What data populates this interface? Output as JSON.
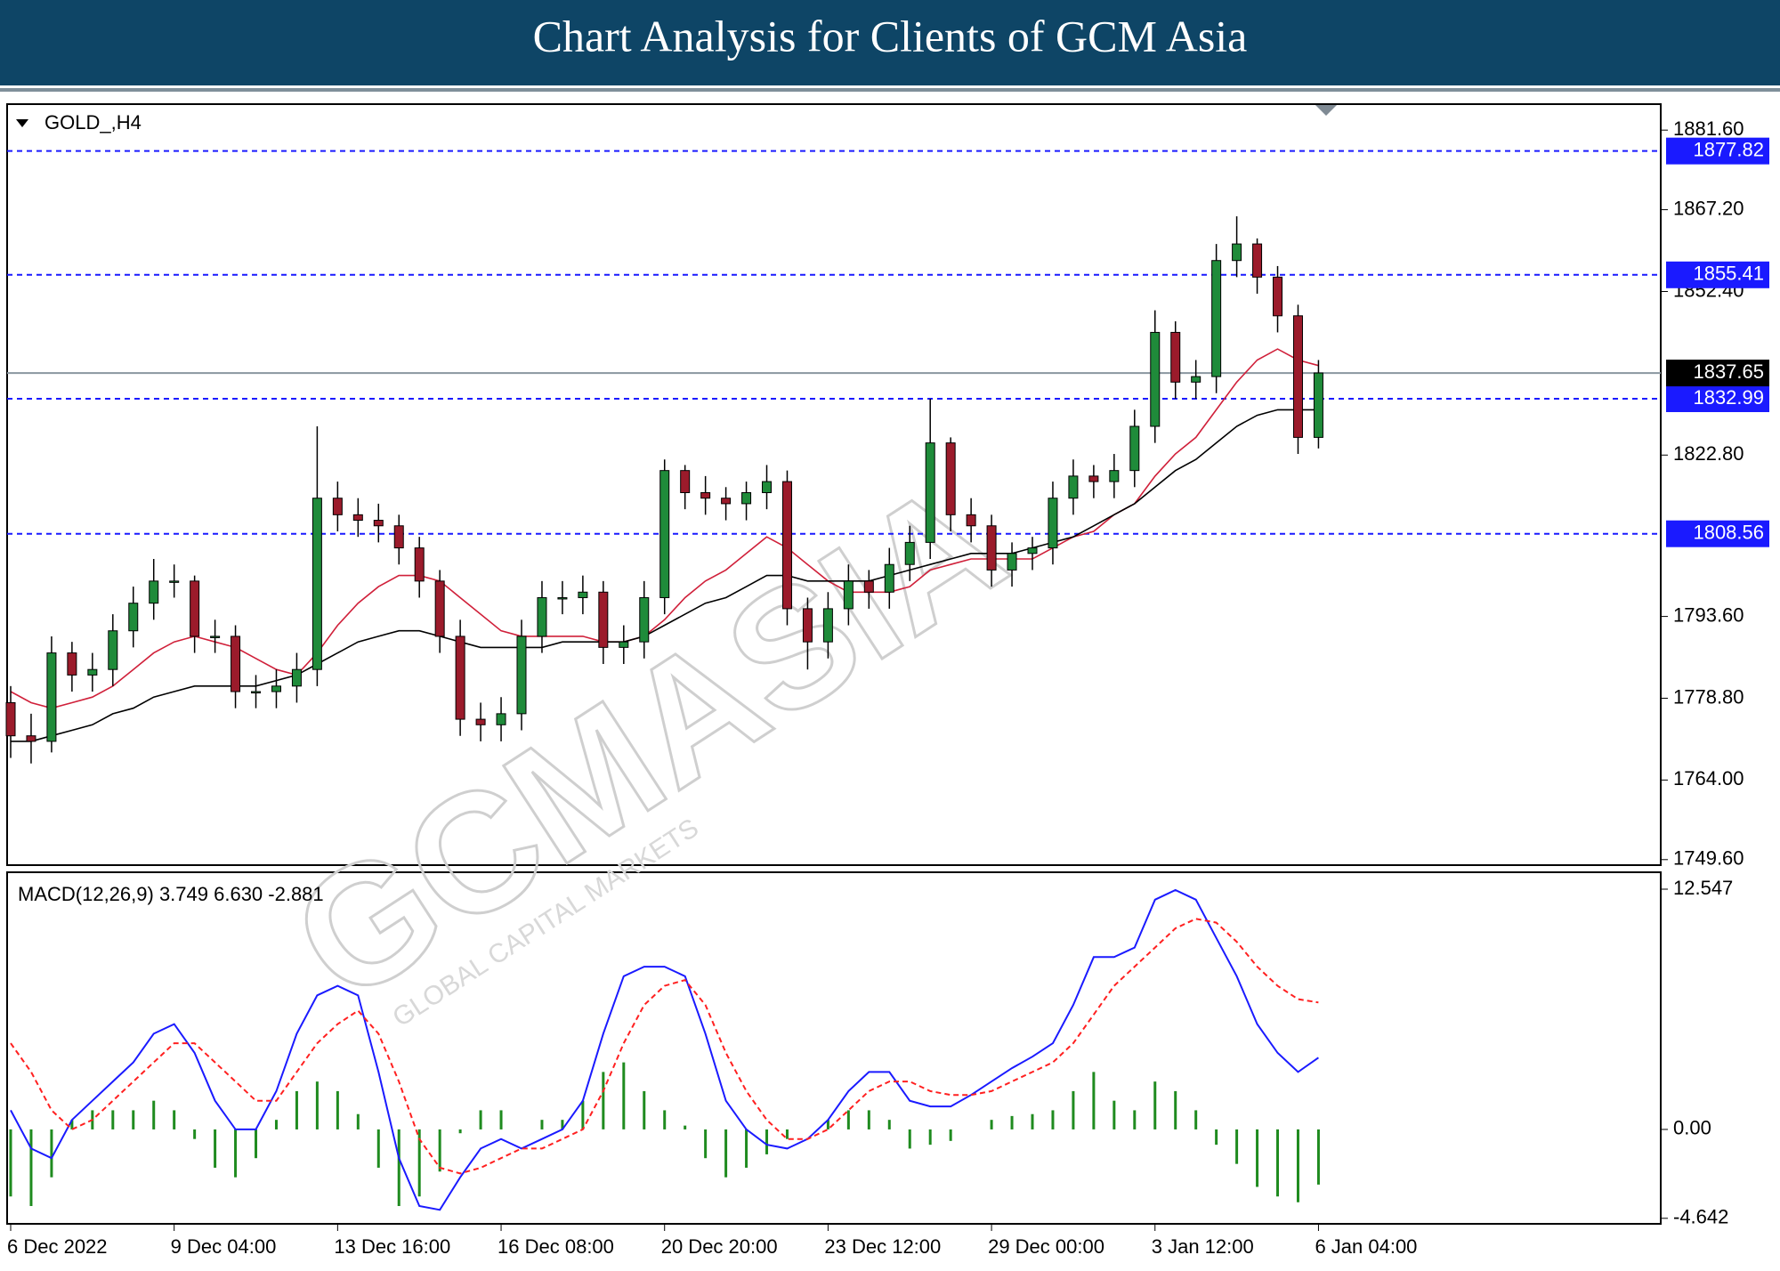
{
  "header": {
    "title": "Chart Analysis for Clients of GCM Asia"
  },
  "watermark": {
    "brand": "GCMASIA",
    "tagline": "GLOBAL CAPITAL MARKETS"
  },
  "chart_data": [
    {
      "type": "candlestick",
      "title": "GOLD_,H4",
      "categories": [
        "6 Dec 2022",
        null,
        null,
        null,
        null,
        null,
        null,
        null,
        "9 Dec 04:00",
        null,
        null,
        null,
        null,
        null,
        null,
        null,
        "13 Dec 16:00",
        null,
        null,
        null,
        null,
        null,
        null,
        null,
        "16 Dec 08:00",
        null,
        null,
        null,
        null,
        null,
        null,
        null,
        "20 Dec 20:00",
        null,
        null,
        null,
        null,
        null,
        null,
        null,
        "23 Dec 12:00",
        null,
        null,
        null,
        null,
        null,
        null,
        null,
        "29 Dec 00:00",
        null,
        null,
        null,
        null,
        null,
        null,
        null,
        "3 Jan 12:00",
        null,
        null,
        null,
        null,
        null,
        null,
        null,
        "6 Jan 04:00"
      ],
      "open": [
        1778,
        1772,
        1771,
        1787,
        1783,
        1784,
        1791,
        1796,
        1800,
        1800,
        1790,
        1790,
        1780,
        1780,
        1781,
        1784,
        1815,
        1812,
        1811,
        1810,
        1806,
        1800,
        1790,
        1775,
        1774,
        1776,
        1790,
        1797,
        1797,
        1798,
        1788,
        1789,
        1797,
        1820,
        1816,
        1815,
        1814,
        1816,
        1818,
        1795,
        1789,
        1795,
        1800,
        1798,
        1803,
        1807,
        1825,
        1812,
        1810,
        1802,
        1805,
        1806,
        1815,
        1819,
        1818,
        1820,
        1828,
        1845,
        1836,
        1837,
        1858,
        1861,
        1855,
        1848,
        1826
      ],
      "high": [
        1781,
        1776,
        1790,
        1789,
        1787,
        1794,
        1799,
        1804,
        1803,
        1801,
        1793,
        1792,
        1783,
        1784,
        1787,
        1828,
        1818,
        1815,
        1814,
        1812,
        1808,
        1802,
        1793,
        1778,
        1779,
        1793,
        1800,
        1800,
        1801,
        1800,
        1792,
        1800,
        1822,
        1821,
        1819,
        1817,
        1818,
        1821,
        1820,
        1797,
        1798,
        1803,
        1802,
        1806,
        1810,
        1833,
        1826,
        1815,
        1812,
        1807,
        1808,
        1818,
        1822,
        1821,
        1823,
        1831,
        1849,
        1847,
        1840,
        1861,
        1866,
        1862,
        1857,
        1850,
        1840
      ],
      "low": [
        1768,
        1767,
        1769,
        1780,
        1780,
        1781,
        1788,
        1793,
        1797,
        1787,
        1787,
        1777,
        1777,
        1777,
        1778,
        1781,
        1809,
        1808,
        1807,
        1803,
        1797,
        1787,
        1772,
        1771,
        1771,
        1773,
        1787,
        1794,
        1794,
        1785,
        1785,
        1786,
        1794,
        1813,
        1812,
        1811,
        1811,
        1813,
        1792,
        1784,
        1786,
        1792,
        1795,
        1795,
        1800,
        1804,
        1809,
        1807,
        1799,
        1799,
        1802,
        1803,
        1812,
        1815,
        1815,
        1817,
        1825,
        1833,
        1833,
        1834,
        1855,
        1852,
        1845,
        1823,
        1824
      ],
      "close": [
        1772,
        1771,
        1787,
        1783,
        1784,
        1791,
        1796,
        1800,
        1800,
        1790,
        1790,
        1780,
        1780,
        1781,
        1784,
        1815,
        1812,
        1811,
        1810,
        1806,
        1800,
        1790,
        1775,
        1774,
        1776,
        1790,
        1797,
        1797,
        1798,
        1788,
        1789,
        1797,
        1820,
        1816,
        1815,
        1814,
        1816,
        1818,
        1795,
        1789,
        1795,
        1800,
        1798,
        1803,
        1807,
        1825,
        1812,
        1810,
        1802,
        1805,
        1806,
        1815,
        1819,
        1818,
        1820,
        1828,
        1845,
        1836,
        1837,
        1858,
        1861,
        1855,
        1848,
        1826,
        1837.65
      ],
      "up_color": "#1f8b3a",
      "down_color": "#9b1b2b",
      "overlays": [
        {
          "color": "#d0203a",
          "values": [
            1780,
            1778,
            1777,
            1778,
            1779,
            1781,
            1784,
            1787,
            1789,
            1790,
            1789,
            1788,
            1786,
            1784,
            1783,
            1787,
            1792,
            1796,
            1799,
            1801,
            1801,
            1800,
            1797,
            1794,
            1791,
            1790,
            1790,
            1790,
            1790,
            1789,
            1789,
            1790,
            1793,
            1797,
            1800,
            1802,
            1805,
            1808,
            1806,
            1803,
            1800,
            1798,
            1798,
            1798,
            1799,
            1802,
            1803,
            1804,
            1804,
            1804,
            1804,
            1806,
            1808,
            1809,
            1812,
            1814,
            1819,
            1823,
            1826,
            1831,
            1836,
            1840,
            1842,
            1840,
            1839
          ]
        },
        {
          "color": "#000000",
          "values": [
            1771,
            1771,
            1772,
            1773,
            1774,
            1776,
            1777,
            1779,
            1780,
            1781,
            1781,
            1781,
            1781,
            1782,
            1783,
            1785,
            1787,
            1789,
            1790,
            1791,
            1791,
            1790,
            1789,
            1788,
            1788,
            1788,
            1788,
            1789,
            1789,
            1789,
            1789,
            1790,
            1792,
            1794,
            1796,
            1797,
            1799,
            1801,
            1801,
            1800,
            1800,
            1800,
            1800,
            1801,
            1802,
            1803,
            1804,
            1805,
            1805,
            1805,
            1806,
            1807,
            1808,
            1810,
            1812,
            1814,
            1817,
            1820,
            1822,
            1825,
            1828,
            1830,
            1831,
            1831,
            1831
          ]
        }
      ],
      "levels": [
        1877.82,
        1855.41,
        1832.99,
        1808.56
      ],
      "level_color": "#1a1aff",
      "current_price": 1837.65,
      "ylim": [
        1748.6,
        1886.3
      ],
      "yticks": [
        {
          "value": 1881.6,
          "label": "1881.60"
        },
        {
          "value": 1867.2,
          "label": "1867.20"
        },
        {
          "value": 1852.4,
          "label": "1852.40"
        },
        {
          "value": 1822.8,
          "label": "1822.80"
        },
        {
          "value": 1793.6,
          "label": "1793.60"
        },
        {
          "value": 1778.8,
          "label": "1778.80"
        },
        {
          "value": 1764,
          "label": "1764.00"
        },
        {
          "value": 1749.6,
          "label": "1749.60"
        }
      ]
    },
    {
      "type": "macd",
      "title": "MACD(12,26,9) 3.749 6.630 -2.881",
      "histogram": {
        "color": "#1f8b1f",
        "values": [
          -3.5,
          -4,
          -2.5,
          0.5,
          1,
          1,
          1,
          1.5,
          1,
          -0.5,
          -2,
          -2.5,
          -1.5,
          0.5,
          2,
          2.5,
          2,
          0.8,
          -2,
          -4,
          -3.5,
          -2.2,
          -0.2,
          1,
          1,
          0,
          0.5,
          0.5,
          1.5,
          3,
          3.5,
          2,
          1,
          0.2,
          -1.5,
          -2.5,
          -2,
          -1.3,
          -0.5,
          0,
          0.5,
          1,
          1,
          0.5,
          -1,
          -0.8,
          -0.6,
          0,
          0.5,
          0.7,
          0.8,
          1,
          2,
          3,
          1.5,
          1,
          2.5,
          2,
          1,
          -0.8,
          -1.8,
          -3,
          -3.5,
          -3.8,
          -2.881
        ]
      },
      "macd": {
        "color": "#1a1aff",
        "values": [
          1,
          -1,
          -1.5,
          0.5,
          1.5,
          2.5,
          3.5,
          5,
          5.5,
          4,
          1.5,
          0,
          0,
          2,
          5,
          7,
          7.5,
          7,
          3,
          -1.5,
          -4,
          -4.2,
          -2.5,
          -1,
          -0.5,
          -1,
          -0.5,
          0,
          1.5,
          5,
          8,
          8.5,
          8.5,
          8,
          5,
          1.5,
          0,
          -0.8,
          -1,
          -0.5,
          0.5,
          2,
          3,
          3,
          1.5,
          1.2,
          1.2,
          1.8,
          2.5,
          3.2,
          3.8,
          4.5,
          6.5,
          9,
          9,
          9.5,
          12,
          12.5,
          12,
          10,
          8,
          5.5,
          4,
          3,
          3.749
        ]
      },
      "signal": {
        "color": "#ff2020",
        "values": [
          4.5,
          3,
          1,
          0,
          0.5,
          1.5,
          2.5,
          3.5,
          4.5,
          4.5,
          3.5,
          2.5,
          1.5,
          1.5,
          3,
          4.5,
          5.5,
          6.2,
          5,
          2.5,
          -0.5,
          -2,
          -2.3,
          -2,
          -1.5,
          -1,
          -1,
          -0.5,
          0,
          2,
          4.5,
          6.5,
          7.5,
          7.8,
          6.5,
          4,
          2,
          0.5,
          -0.5,
          -0.5,
          0,
          1,
          2,
          2.5,
          2.5,
          2,
          1.8,
          1.8,
          2,
          2.5,
          3,
          3.5,
          4.5,
          6,
          7.5,
          8.5,
          9.5,
          10.5,
          11,
          10.8,
          9.8,
          8.5,
          7.5,
          6.8,
          6.63
        ]
      },
      "ylim": [
        -4.93,
        13.43
      ],
      "yticks": [
        12.547,
        {
          "value": 0,
          "label": "0.00"
        },
        -4.642
      ]
    }
  ]
}
